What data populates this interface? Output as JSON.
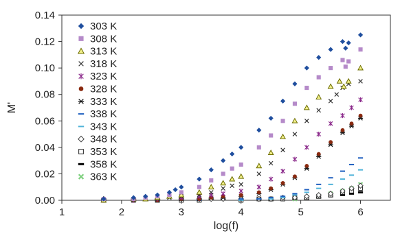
{
  "chart_data": {
    "type": "scatter",
    "title": "",
    "xlabel": "log(f)",
    "ylabel": "M'",
    "xlim": [
      1,
      6.5
    ],
    "ylim": [
      0,
      0.14
    ],
    "xticks": [
      "1",
      "2",
      "3",
      "4",
      "5",
      "6"
    ],
    "yticks": [
      "0.00",
      "0.02",
      "0.04",
      "0.06",
      "0.08",
      "0.10",
      "0.12",
      "0.14"
    ],
    "grid": false,
    "legend_position": "top-left",
    "series": [
      {
        "name": "303 K",
        "marker": "diamond-filled",
        "color": "#1f4e9e",
        "points": [
          [
            1.7,
            0.001
          ],
          [
            2.2,
            0.002
          ],
          [
            2.4,
            0.003
          ],
          [
            2.6,
            0.004
          ],
          [
            2.8,
            0.006
          ],
          [
            2.9,
            0.008
          ],
          [
            3.0,
            0.01
          ],
          [
            3.3,
            0.016
          ],
          [
            3.5,
            0.023
          ],
          [
            3.7,
            0.03
          ],
          [
            3.85,
            0.035
          ],
          [
            4.0,
            0.04
          ],
          [
            4.3,
            0.053
          ],
          [
            4.5,
            0.062
          ],
          [
            4.7,
            0.075
          ],
          [
            4.9,
            0.088
          ],
          [
            5.1,
            0.1
          ],
          [
            5.3,
            0.108
          ],
          [
            5.5,
            0.114
          ],
          [
            5.7,
            0.12
          ],
          [
            5.75,
            0.115
          ],
          [
            5.8,
            0.119
          ],
          [
            6.0,
            0.125
          ]
        ]
      },
      {
        "name": "308 K",
        "marker": "square-filled",
        "color": "#b58ac9",
        "points": [
          [
            1.7,
            0.001
          ],
          [
            2.2,
            0.001
          ],
          [
            2.4,
            0.002
          ],
          [
            2.6,
            0.003
          ],
          [
            2.8,
            0.004
          ],
          [
            3.0,
            0.006
          ],
          [
            3.3,
            0.01
          ],
          [
            3.5,
            0.015
          ],
          [
            3.7,
            0.02
          ],
          [
            3.85,
            0.024
          ],
          [
            4.0,
            0.027
          ],
          [
            4.3,
            0.04
          ],
          [
            4.5,
            0.049
          ],
          [
            4.7,
            0.06
          ],
          [
            4.9,
            0.073
          ],
          [
            5.1,
            0.085
          ],
          [
            5.3,
            0.093
          ],
          [
            5.5,
            0.1
          ],
          [
            5.7,
            0.106
          ],
          [
            5.75,
            0.101
          ],
          [
            5.8,
            0.105
          ],
          [
            6.0,
            0.114
          ]
        ]
      },
      {
        "name": "313 K",
        "marker": "triangle-open-olive",
        "color": "#6b6b00",
        "points": [
          [
            1.7,
            0.0
          ],
          [
            2.2,
            0.001
          ],
          [
            2.4,
            0.001
          ],
          [
            2.6,
            0.002
          ],
          [
            2.8,
            0.003
          ],
          [
            3.0,
            0.004
          ],
          [
            3.3,
            0.006
          ],
          [
            3.5,
            0.01
          ],
          [
            3.7,
            0.013
          ],
          [
            3.85,
            0.016
          ],
          [
            4.0,
            0.018
          ],
          [
            4.3,
            0.026
          ],
          [
            4.5,
            0.036
          ],
          [
            4.7,
            0.048
          ],
          [
            4.9,
            0.06
          ],
          [
            5.1,
            0.07
          ],
          [
            5.3,
            0.078
          ],
          [
            5.5,
            0.086
          ],
          [
            5.65,
            0.09
          ],
          [
            5.72,
            0.086
          ],
          [
            5.8,
            0.09
          ],
          [
            6.0,
            0.1
          ]
        ]
      },
      {
        "name": "318 K",
        "marker": "x",
        "color": "#333333",
        "points": [
          [
            1.7,
            0.0
          ],
          [
            2.2,
            0.0
          ],
          [
            2.4,
            0.001
          ],
          [
            2.6,
            0.001
          ],
          [
            2.8,
            0.002
          ],
          [
            3.0,
            0.003
          ],
          [
            3.3,
            0.004
          ],
          [
            3.5,
            0.006
          ],
          [
            3.7,
            0.009
          ],
          [
            3.85,
            0.011
          ],
          [
            4.0,
            0.012
          ],
          [
            4.3,
            0.02
          ],
          [
            4.5,
            0.028
          ],
          [
            4.7,
            0.038
          ],
          [
            4.9,
            0.05
          ],
          [
            5.1,
            0.06
          ],
          [
            5.3,
            0.068
          ],
          [
            5.5,
            0.075
          ],
          [
            5.6,
            0.08
          ],
          [
            5.7,
            0.085
          ],
          [
            5.8,
            0.088
          ],
          [
            6.0,
            0.09
          ]
        ]
      },
      {
        "name": "323 K",
        "marker": "star",
        "color": "#8b2a8b",
        "points": [
          [
            1.7,
            0.0
          ],
          [
            2.2,
            0.0
          ],
          [
            2.6,
            0.001
          ],
          [
            3.0,
            0.002
          ],
          [
            3.3,
            0.003
          ],
          [
            3.5,
            0.004
          ],
          [
            3.7,
            0.005
          ],
          [
            4.0,
            0.007
          ],
          [
            4.3,
            0.01
          ],
          [
            4.5,
            0.016
          ],
          [
            4.7,
            0.022
          ],
          [
            4.9,
            0.031
          ],
          [
            5.1,
            0.04
          ],
          [
            5.3,
            0.05
          ],
          [
            5.5,
            0.058
          ],
          [
            5.7,
            0.064
          ],
          [
            5.85,
            0.07
          ],
          [
            6.0,
            0.076
          ]
        ]
      },
      {
        "name": "328 K",
        "marker": "circle-filled",
        "color": "#8a2a10",
        "points": [
          [
            1.7,
            0.0
          ],
          [
            2.2,
            0.0
          ],
          [
            2.6,
            0.0
          ],
          [
            3.0,
            0.001
          ],
          [
            3.3,
            0.001
          ],
          [
            3.5,
            0.002
          ],
          [
            3.7,
            0.003
          ],
          [
            4.0,
            0.004
          ],
          [
            4.3,
            0.006
          ],
          [
            4.5,
            0.009
          ],
          [
            4.7,
            0.013
          ],
          [
            4.9,
            0.018
          ],
          [
            5.1,
            0.026
          ],
          [
            5.3,
            0.035
          ],
          [
            5.5,
            0.044
          ],
          [
            5.7,
            0.053
          ],
          [
            5.85,
            0.058
          ],
          [
            6.0,
            0.064
          ]
        ]
      },
      {
        "name": "333 K",
        "marker": "asterisk",
        "color": "#111111",
        "points": [
          [
            1.7,
            0.0
          ],
          [
            2.2,
            0.0
          ],
          [
            2.6,
            0.0
          ],
          [
            3.0,
            0.001
          ],
          [
            3.3,
            0.001
          ],
          [
            3.5,
            0.002
          ],
          [
            3.7,
            0.002
          ],
          [
            4.0,
            0.003
          ],
          [
            4.3,
            0.005
          ],
          [
            4.5,
            0.008
          ],
          [
            4.7,
            0.012
          ],
          [
            4.9,
            0.017
          ],
          [
            5.1,
            0.024
          ],
          [
            5.3,
            0.033
          ],
          [
            5.5,
            0.042
          ],
          [
            5.7,
            0.051
          ],
          [
            5.85,
            0.056
          ],
          [
            6.0,
            0.062
          ]
        ]
      },
      {
        "name": "338 K",
        "marker": "dash",
        "color": "#1f5fbf",
        "points": [
          [
            1.7,
            0.0
          ],
          [
            2.6,
            0.0
          ],
          [
            3.3,
            0.0
          ],
          [
            4.0,
            0.001
          ],
          [
            4.3,
            0.001
          ],
          [
            4.5,
            0.002
          ],
          [
            4.7,
            0.003
          ],
          [
            4.9,
            0.005
          ],
          [
            5.1,
            0.008
          ],
          [
            5.3,
            0.012
          ],
          [
            5.5,
            0.017
          ],
          [
            5.7,
            0.022
          ],
          [
            5.85,
            0.027
          ],
          [
            6.0,
            0.032
          ]
        ]
      },
      {
        "name": "343 K",
        "marker": "dash",
        "color": "#4fb3d9",
        "points": [
          [
            1.7,
            0.0
          ],
          [
            2.6,
            0.0
          ],
          [
            3.3,
            0.0
          ],
          [
            4.0,
            0.0
          ],
          [
            4.3,
            0.001
          ],
          [
            4.5,
            0.001
          ],
          [
            4.7,
            0.002
          ],
          [
            4.9,
            0.004
          ],
          [
            5.1,
            0.006
          ],
          [
            5.3,
            0.009
          ],
          [
            5.5,
            0.012
          ],
          [
            5.7,
            0.016
          ],
          [
            5.85,
            0.019
          ],
          [
            6.0,
            0.023
          ]
        ]
      },
      {
        "name": "348 K",
        "marker": "diamond-open",
        "color": "#444444",
        "points": [
          [
            1.7,
            0.001
          ],
          [
            2.2,
            0.001
          ],
          [
            2.6,
            0.001
          ],
          [
            3.0,
            0.001
          ],
          [
            3.3,
            0.001
          ],
          [
            3.5,
            0.001
          ],
          [
            3.7,
            0.001
          ],
          [
            4.0,
            0.001
          ],
          [
            4.3,
            0.001
          ],
          [
            4.5,
            0.001
          ],
          [
            4.7,
            0.002
          ],
          [
            4.9,
            0.002
          ],
          [
            5.1,
            0.003
          ],
          [
            5.3,
            0.004
          ],
          [
            5.5,
            0.005
          ],
          [
            5.7,
            0.007
          ],
          [
            5.85,
            0.009
          ],
          [
            6.0,
            0.011
          ]
        ]
      },
      {
        "name": "353 K",
        "marker": "square-open",
        "color": "#222222",
        "points": [
          [
            1.7,
            0.0
          ],
          [
            2.2,
            0.0
          ],
          [
            2.6,
            0.0
          ],
          [
            3.0,
            0.0
          ],
          [
            3.3,
            0.0
          ],
          [
            4.0,
            0.0
          ],
          [
            4.3,
            0.001
          ],
          [
            4.5,
            0.001
          ],
          [
            4.7,
            0.001
          ],
          [
            4.9,
            0.002
          ],
          [
            5.1,
            0.002
          ],
          [
            5.3,
            0.003
          ],
          [
            5.5,
            0.004
          ],
          [
            5.7,
            0.006
          ],
          [
            5.85,
            0.007
          ],
          [
            6.0,
            0.009
          ]
        ]
      },
      {
        "name": "358 K",
        "marker": "dash-thick",
        "color": "#000000",
        "points": [
          [
            1.7,
            0.0
          ],
          [
            2.6,
            0.0
          ],
          [
            3.3,
            0.0
          ],
          [
            4.0,
            0.0
          ],
          [
            4.5,
            0.0
          ],
          [
            4.9,
            0.001
          ],
          [
            5.1,
            0.001
          ],
          [
            5.3,
            0.002
          ],
          [
            5.5,
            0.003
          ],
          [
            5.7,
            0.004
          ],
          [
            5.85,
            0.005
          ],
          [
            6.0,
            0.006
          ]
        ]
      },
      {
        "name": "363 K",
        "marker": "x-thick",
        "color": "#7fd07f",
        "points": [
          [
            1.7,
            0.0
          ],
          [
            2.6,
            0.0
          ],
          [
            3.3,
            0.0
          ],
          [
            4.0,
            0.0
          ],
          [
            4.5,
            0.001
          ],
          [
            4.9,
            0.001
          ],
          [
            5.1,
            0.002
          ],
          [
            5.3,
            0.003
          ],
          [
            5.5,
            0.005
          ],
          [
            5.7,
            0.007
          ],
          [
            5.85,
            0.009
          ],
          [
            6.0,
            0.012
          ]
        ]
      }
    ]
  }
}
